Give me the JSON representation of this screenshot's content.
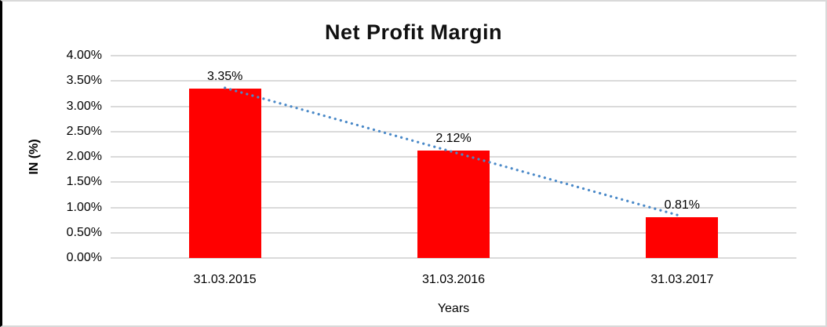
{
  "chart_data": {
    "type": "bar",
    "title": "Net Profit Margin",
    "categories": [
      "31.03.2015",
      "31.03.2016",
      "31.03.2017"
    ],
    "values": [
      3.35,
      2.12,
      0.81
    ],
    "data_labels": [
      "3.35%",
      "2.12%",
      "0.81%"
    ],
    "xlabel": "Years",
    "ylabel": "IN (%)",
    "ylim": [
      0,
      4
    ],
    "ytick_step": 0.5,
    "ytick_labels": [
      "0.00%",
      "0.50%",
      "1.00%",
      "1.50%",
      "2.00%",
      "2.50%",
      "3.00%",
      "3.50%",
      "4.00%"
    ],
    "grid": true,
    "legend": "none",
    "bar_color": "#FF0000",
    "gridline_color": "#DADADA",
    "trendline": {
      "type": "linear",
      "style": "dotted",
      "color": "#4A89C8"
    }
  }
}
